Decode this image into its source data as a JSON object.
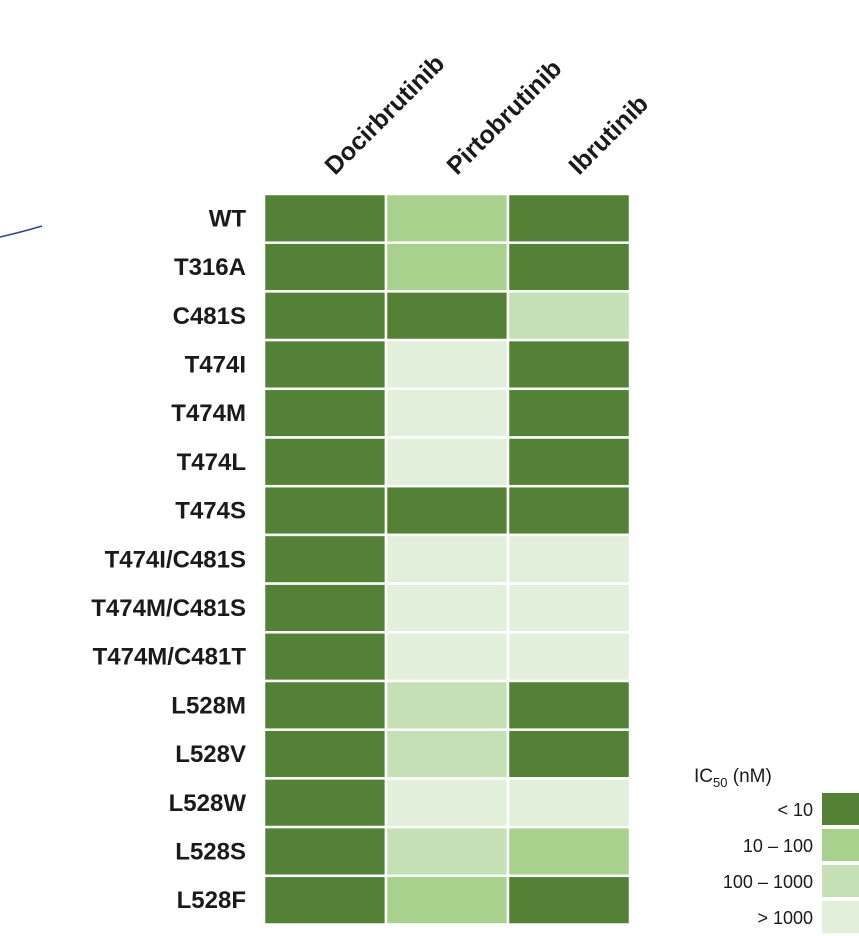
{
  "chart_data": {
    "type": "heatmap",
    "columns": [
      "Docirbrutinib",
      "Pirtobrutinib",
      "Ibrutinib"
    ],
    "rows": [
      "WT",
      "T316A",
      "C481S",
      "T474I",
      "T474M",
      "T474L",
      "T474S",
      "T474I/C481S",
      "T474M/C481S",
      "T474M/C481T",
      "L528M",
      "L528V",
      "L528W",
      "L528S",
      "L528F"
    ],
    "values": [
      [
        "< 10",
        "10 – 100",
        "< 10"
      ],
      [
        "< 10",
        "10 – 100",
        "< 10"
      ],
      [
        "< 10",
        "< 10",
        "100 – 1000"
      ],
      [
        "< 10",
        "> 1000",
        "< 10"
      ],
      [
        "< 10",
        "> 1000",
        "< 10"
      ],
      [
        "< 10",
        "> 1000",
        "< 10"
      ],
      [
        "< 10",
        "< 10",
        "< 10"
      ],
      [
        "< 10",
        "> 1000",
        "> 1000"
      ],
      [
        "< 10",
        "> 1000",
        "> 1000"
      ],
      [
        "< 10",
        "> 1000",
        "> 1000"
      ],
      [
        "< 10",
        "100 – 1000",
        "< 10"
      ],
      [
        "< 10",
        "100 – 1000",
        "< 10"
      ],
      [
        "< 10",
        "> 1000",
        "> 1000"
      ],
      [
        "< 10",
        "100 – 1000",
        "10 – 100"
      ],
      [
        "< 10",
        "10 – 100",
        "< 10"
      ]
    ],
    "legend": {
      "title_main": "IC",
      "title_sub": "50",
      "title_unit": " (nM)",
      "placement": "bottom-right",
      "bins": [
        {
          "label": "< 10",
          "color": "#538135"
        },
        {
          "label": "10 – 100",
          "color": "#a9d18e"
        },
        {
          "label": "100 – 1000",
          "color": "#c5e0b4"
        },
        {
          "label": "> 1000",
          "color": "#e2efda"
        }
      ]
    }
  }
}
